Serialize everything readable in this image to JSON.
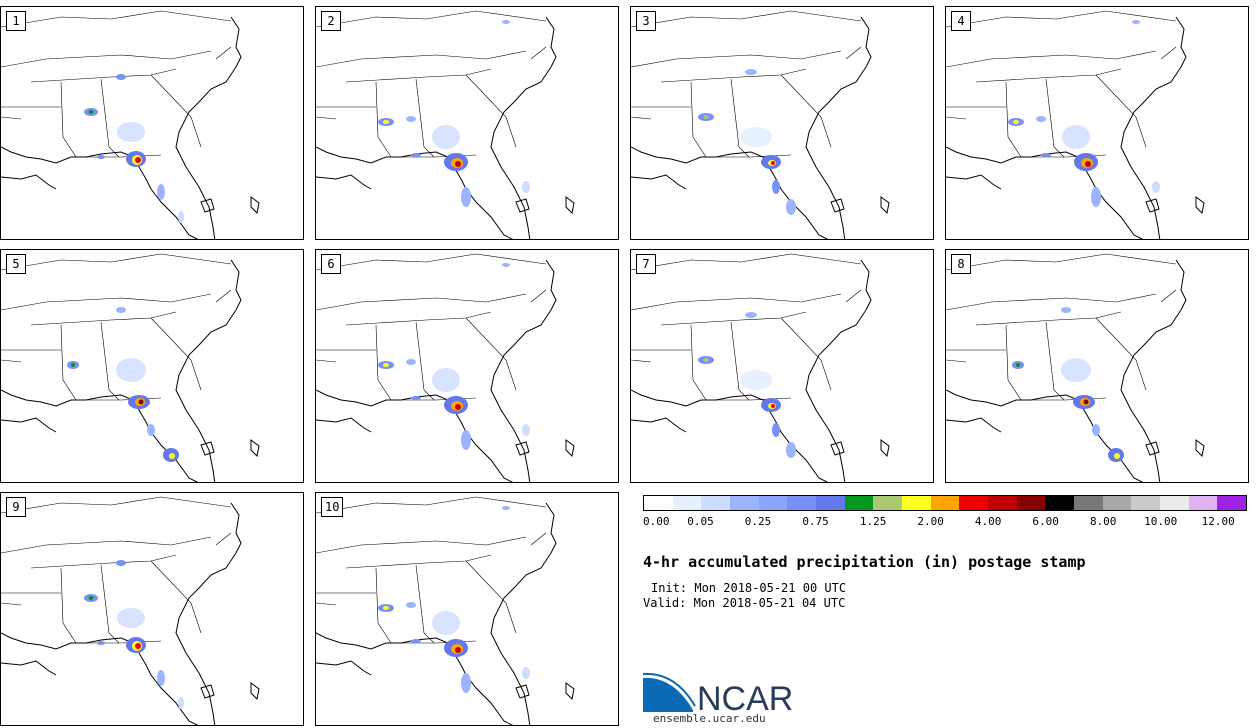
{
  "panels": [
    {
      "label": "1"
    },
    {
      "label": "2"
    },
    {
      "label": "3"
    },
    {
      "label": "4"
    },
    {
      "label": "5"
    },
    {
      "label": "6"
    },
    {
      "label": "7"
    },
    {
      "label": "8"
    },
    {
      "label": "9"
    },
    {
      "label": "10"
    }
  ],
  "colorbar": {
    "colors": [
      "#ffffff",
      "#e6f0ff",
      "#cddcff",
      "#9ab4ff",
      "#8aa4ff",
      "#7890f8",
      "#6478ee",
      "#009a1e",
      "#aac870",
      "#ffff1e",
      "#ffa500",
      "#ee0000",
      "#c00000",
      "#880000",
      "#000000",
      "#787878",
      "#a8a8a8",
      "#cacaca",
      "#ececec",
      "#e0b4f0",
      "#a020e6"
    ],
    "tick_labels": [
      "0.00",
      "0.05",
      "0.25",
      "0.75",
      "1.25",
      "2.00",
      "4.00",
      "6.00",
      "8.00",
      "10.00",
      "12.00"
    ]
  },
  "info": {
    "title": "4-hr accumulated precipitation (in) postage stamp",
    "init": "Init: Mon 2018-05-21 00 UTC",
    "valid": "Valid: Mon 2018-05-21 04 UTC"
  },
  "logo": {
    "name": "NCAR",
    "url": "ensemble.ucar.edu"
  }
}
